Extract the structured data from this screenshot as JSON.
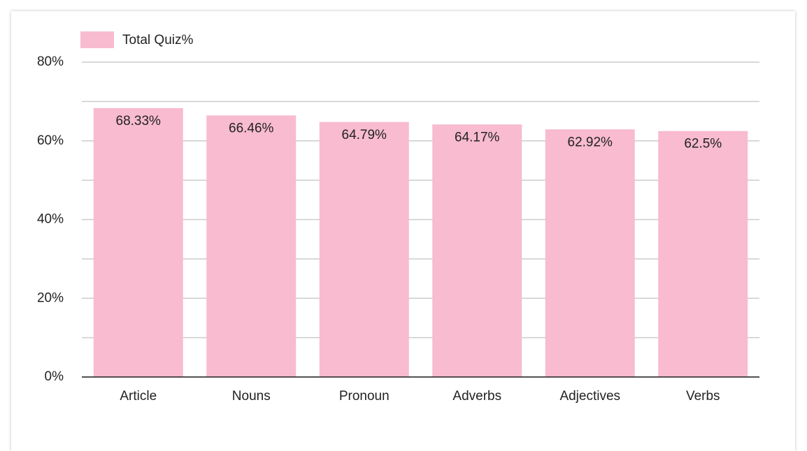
{
  "chart_data": {
    "type": "bar",
    "legend": "Total Quiz%",
    "categories": [
      "Article",
      "Nouns",
      "Pronoun",
      "Adverbs",
      "Adjectives",
      "Verbs"
    ],
    "values": [
      68.33,
      66.46,
      64.79,
      64.17,
      62.92,
      62.5
    ],
    "value_labels": [
      "68.33%",
      "66.46%",
      "64.79%",
      "64.17%",
      "62.92%",
      "62.5%"
    ],
    "color": "#f8bbd0",
    "ylim": [
      0,
      80
    ],
    "yticks": [
      {
        "value": 0,
        "label": "0%"
      },
      {
        "value": 20,
        "label": "20%"
      },
      {
        "value": 40,
        "label": "40%"
      },
      {
        "value": 60,
        "label": "60%"
      },
      {
        "value": 80,
        "label": "80%"
      }
    ],
    "minor_yticks": [
      10,
      30,
      50,
      70
    ],
    "grid": true
  }
}
